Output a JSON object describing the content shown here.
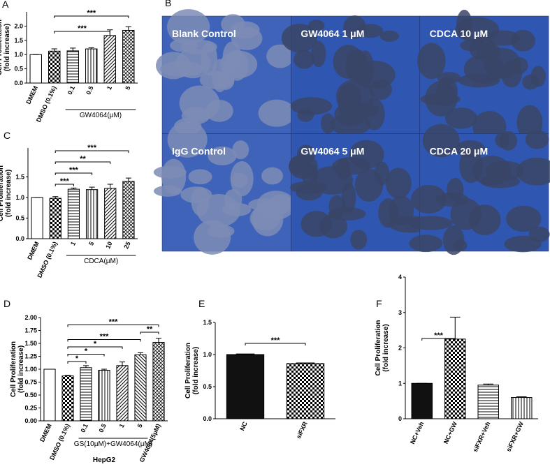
{
  "chart_data": [
    {
      "type": "bar",
      "panel": "A",
      "ylabel": [
        "Cell Proliferation",
        "(fold increase)"
      ],
      "categories": [
        "DMEM",
        "DMSO (0.1%)",
        "0.1",
        "0.5",
        "1",
        "5"
      ],
      "values": [
        1.0,
        1.12,
        1.13,
        1.2,
        1.67,
        1.85
      ],
      "errors": [
        0,
        0.08,
        0.1,
        0.04,
        0.2,
        0.13
      ],
      "fills": [
        "white",
        "checker",
        "hlines",
        "vlines",
        "diag",
        "cross"
      ],
      "ylim": [
        0,
        2.5
      ],
      "yticks": [
        {
          "value": 0,
          "label": "0.0"
        },
        0.5,
        {
          "value": 1,
          "label": "1.0"
        },
        1.5,
        {
          "value": 2,
          "label": "2.0"
        }
      ],
      "group": {
        "label": "GW4064(μM)",
        "from": "0.1",
        "to": "5"
      },
      "comparisons": [
        {
          "from": "DMSO (0.1%)",
          "to": "1",
          "label": "***"
        },
        {
          "from": "DMSO (0.1%)",
          "to": "5",
          "label": "***"
        }
      ]
    },
    {
      "type": "image_grid",
      "panel": "B",
      "labels": [
        "Blank Control",
        "GW4064 1 μM",
        "CDCA 10 μM",
        "IgG Control",
        "GW4064 5 μM",
        "CDCA 20 μM"
      ]
    },
    {
      "type": "bar",
      "panel": "C",
      "ylabel": [
        "Cell Proliferation",
        "(fold increase)"
      ],
      "categories": [
        "DMEM",
        "DMSO (0.1%)",
        "1",
        "5",
        "10",
        "25"
      ],
      "values": [
        1.0,
        0.98,
        1.2,
        1.19,
        1.22,
        1.39
      ],
      "errors": [
        0,
        0.04,
        0.03,
        0.06,
        0.1,
        0.08
      ],
      "fills": [
        "white",
        "checker",
        "hlines",
        "vlines",
        "diag",
        "cross"
      ],
      "ylim": [
        0,
        2.2
      ],
      "yticks": [
        {
          "value": 0,
          "label": "0.0"
        },
        0.5,
        {
          "value": 1,
          "label": "1.0"
        },
        1.5
      ],
      "group": {
        "label": "CDCA(μM)",
        "from": "1",
        "to": "25"
      },
      "comparisons": [
        {
          "from": "DMSO (0.1%)",
          "to": "1",
          "label": "***"
        },
        {
          "from": "DMSO (0.1%)",
          "to": "5",
          "label": "***"
        },
        {
          "from": "DMSO (0.1%)",
          "to": "10",
          "label": "**"
        },
        {
          "from": "DMSO (0.1%)",
          "to": "25",
          "label": "***"
        }
      ]
    },
    {
      "type": "bar",
      "panel": "D",
      "ylabel": [
        "Cell Proliferation",
        "(fold increase)"
      ],
      "xlabel": "HepG2",
      "categories": [
        "DMEM",
        "DMSO (0.1%)",
        "0.1",
        "0.5",
        "1",
        "5",
        "GW4064(5μM)"
      ],
      "values": [
        1.0,
        0.87,
        1.03,
        0.98,
        1.07,
        1.28,
        1.52
      ],
      "errors": [
        0,
        0.01,
        0.04,
        0.02,
        0.07,
        0.04,
        0.08
      ],
      "fills": [
        "white",
        "checker",
        "hlines",
        "vlines",
        "diag",
        "diag2",
        "cross"
      ],
      "ylim": [
        0,
        2
      ],
      "yticks": [
        {
          "value": 0,
          "label": "0.00"
        },
        0.25,
        {
          "value": 0.5,
          "label": "0.50"
        },
        0.75,
        {
          "value": 1,
          "label": "1.00"
        },
        1.25,
        {
          "value": 1.5,
          "label": "1.50"
        },
        1.75,
        {
          "value": 2,
          "label": "2.00"
        }
      ],
      "group": {
        "label": "GS(10μM)+GW4064(μM)",
        "from": "0.1",
        "to": "5"
      },
      "comparisons": [
        {
          "from": "DMSO (0.1%)",
          "to": "0.1",
          "label": "*"
        },
        {
          "from": "DMSO (0.1%)",
          "to": "0.5",
          "label": "*"
        },
        {
          "from": "DMSO (0.1%)",
          "to": "1",
          "label": "*"
        },
        {
          "from": "DMSO (0.1%)",
          "to": "5",
          "label": "***"
        },
        {
          "from": "5",
          "to": "GW4064(5μM)",
          "label": "**"
        },
        {
          "from": "DMSO (0.1%)",
          "to": "GW4064(5μM)",
          "label": "***"
        }
      ]
    },
    {
      "type": "bar",
      "panel": "E",
      "ylabel": [
        "Cell Proliferation",
        "(fold increase)"
      ],
      "categories": [
        "NC",
        "siFXR"
      ],
      "values": [
        1.0,
        0.86
      ],
      "errors": [
        0.01,
        0.01
      ],
      "fills": [
        "black",
        "checker"
      ],
      "ylim": [
        0,
        1.5
      ],
      "yticks": [
        {
          "value": 0,
          "label": "0.0"
        },
        0.5,
        {
          "value": 1,
          "label": "1.0"
        },
        1.5
      ],
      "comparisons": [
        {
          "from": "NC",
          "to": "siFXR",
          "label": "***"
        }
      ]
    },
    {
      "type": "bar",
      "panel": "F",
      "ylabel": [
        "Cell Proliferation",
        "(fold increase)"
      ],
      "categories": [
        "NC+Veh",
        "NC+GW",
        "siFXR+Veh",
        "siFXR+GW"
      ],
      "values": [
        1.0,
        2.25,
        0.95,
        0.6
      ],
      "errors": [
        0,
        0.62,
        0.03,
        0.02
      ],
      "fills": [
        "black",
        "checker",
        "hlines",
        "vlines"
      ],
      "ylim": [
        0,
        4
      ],
      "yticks": [
        0,
        1,
        2,
        3,
        4
      ],
      "comparisons": [
        {
          "from": "NC+Veh",
          "to": "NC+GW",
          "label": "***"
        }
      ]
    }
  ]
}
